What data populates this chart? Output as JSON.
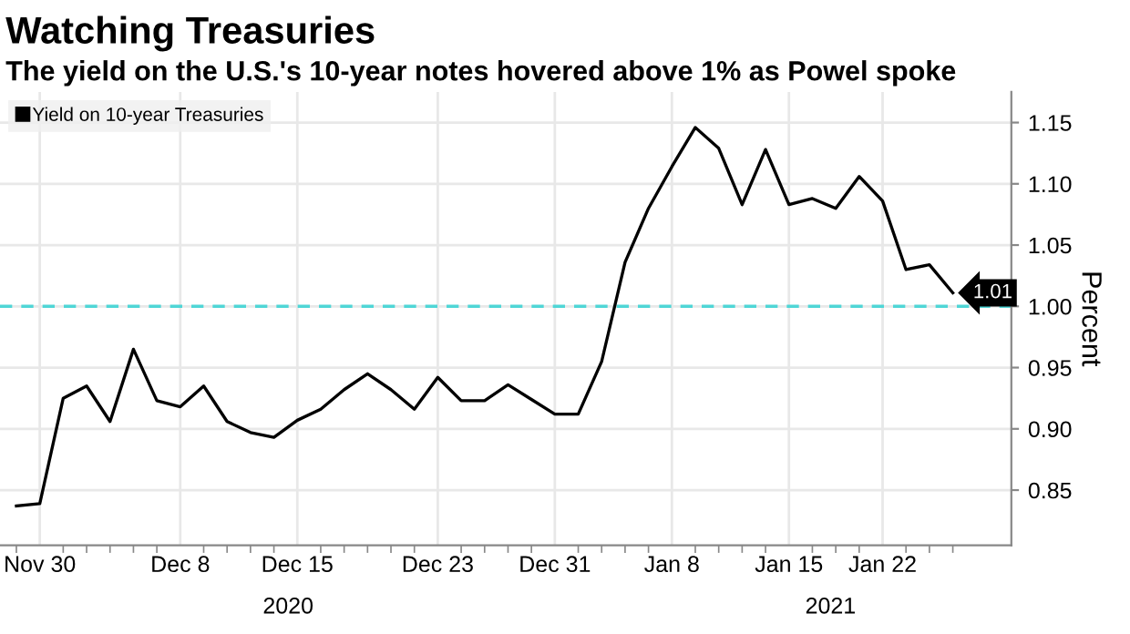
{
  "chart_data": {
    "type": "line",
    "title": "Watching Treasuries",
    "subtitle": "The yield on the U.S.'s 10-year notes hovered above 1% as Powel spoke",
    "ylabel": "Percent",
    "categories": [
      null,
      "Nov 30",
      null,
      null,
      null,
      null,
      null,
      "Dec 8",
      null,
      null,
      null,
      null,
      "Dec 15",
      null,
      null,
      null,
      null,
      null,
      "Dec 23",
      null,
      null,
      null,
      null,
      "Dec 31",
      null,
      null,
      null,
      null,
      "Jan 8",
      null,
      null,
      null,
      null,
      "Jan 15",
      null,
      null,
      null,
      "Jan 22",
      null,
      null,
      null
    ],
    "series": [
      {
        "name": "Yield on 10-year Treasuries",
        "color": "#000000",
        "values": [
          0.837,
          0.839,
          0.925,
          0.935,
          0.906,
          0.965,
          0.923,
          0.918,
          0.935,
          0.906,
          0.897,
          0.893,
          0.907,
          0.916,
          0.932,
          0.945,
          0.932,
          0.916,
          0.942,
          0.923,
          0.923,
          0.936,
          0.924,
          0.912,
          0.912,
          0.955,
          1.036,
          1.08,
          1.114,
          1.146,
          1.129,
          1.083,
          1.128,
          1.083,
          1.088,
          1.08,
          1.106,
          1.086,
          1.03,
          1.034,
          1.011
        ],
        "value_labels": [
          null,
          null,
          null,
          null,
          null,
          null,
          null,
          null,
          null,
          null,
          null,
          null,
          null,
          null,
          null,
          null,
          null,
          null,
          null,
          null,
          null,
          null,
          null,
          null,
          null,
          null,
          null,
          null,
          null,
          null,
          null,
          null,
          null,
          null,
          null,
          null,
          null,
          null,
          null,
          null,
          "1.01"
        ]
      }
    ],
    "ylim": [
      0.805,
      1.175
    ],
    "yticks": [
      0.85,
      {
        "value": 0.9,
        "label": "0.90"
      },
      0.95,
      {
        "value": 1.0,
        "label": "1.00"
      },
      1.05,
      {
        "value": 1.1,
        "label": "1.10"
      },
      1.15
    ],
    "ref_lines": [
      {
        "axis": "y",
        "value": 1.0,
        "color": "#4fd6d6",
        "line_style": "dashed"
      }
    ],
    "annotations": [
      "2020",
      "2021"
    ],
    "grid": true,
    "legend": "top left",
    "marker": "none",
    "line_style": "solid"
  }
}
